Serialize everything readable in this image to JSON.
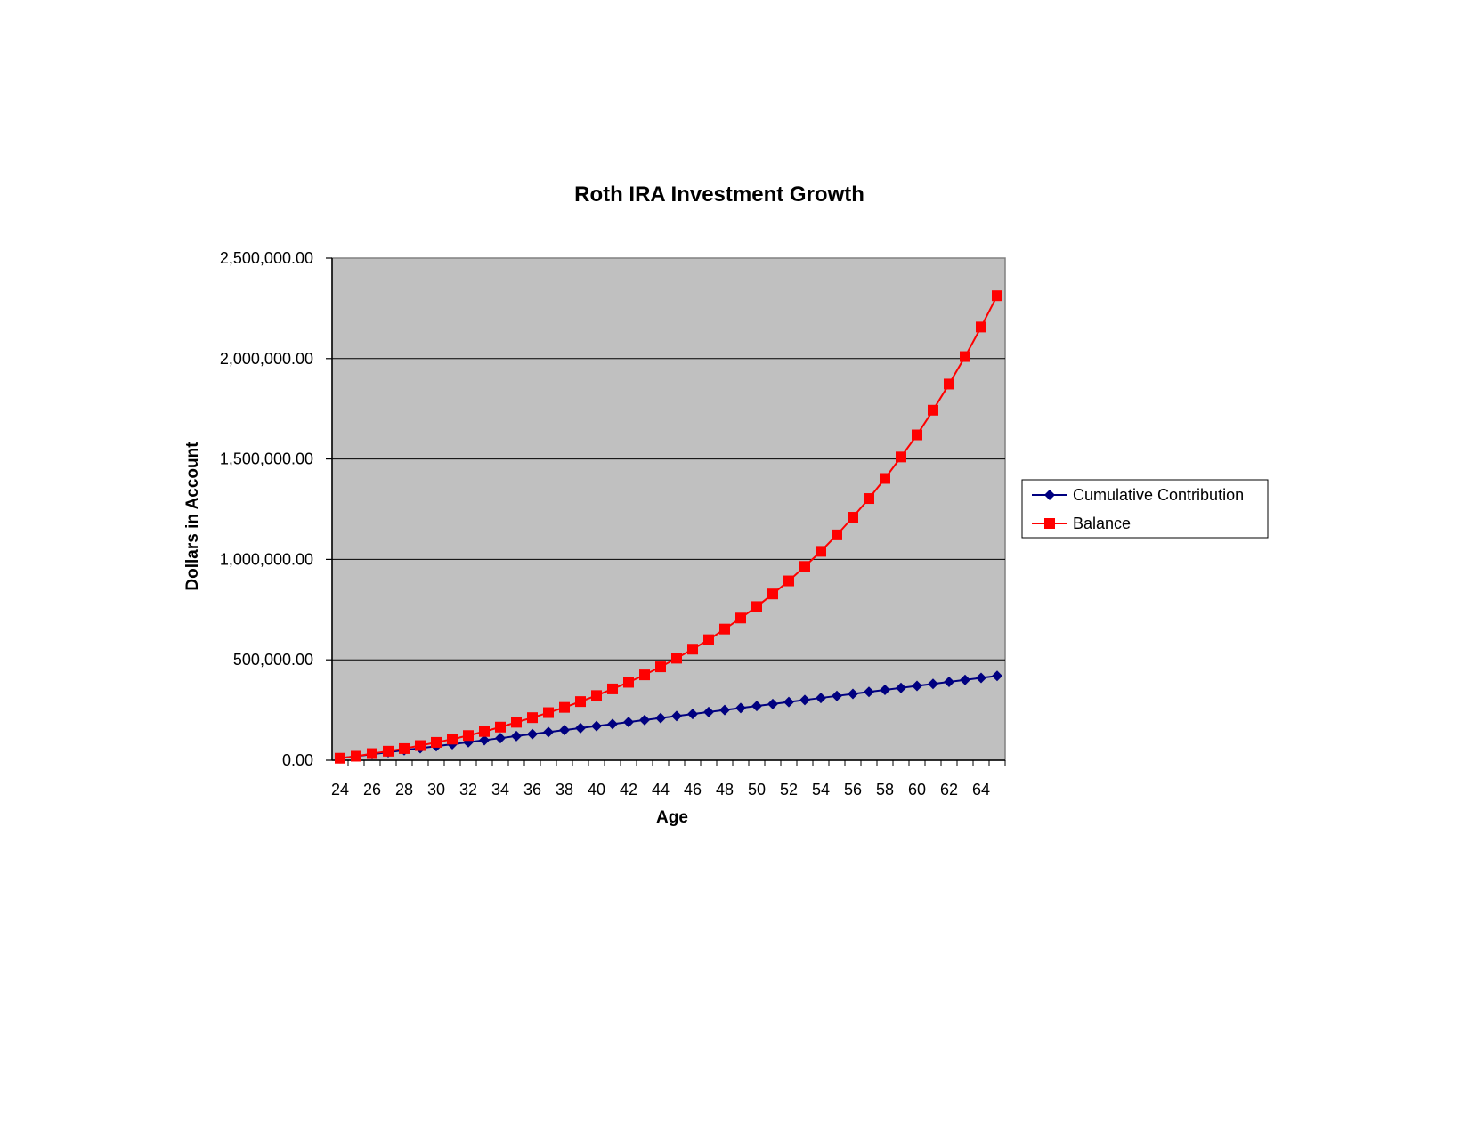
{
  "chart_data": {
    "type": "line",
    "title": "Roth IRA Investment Growth",
    "xlabel": "Age",
    "ylabel": "Dollars in Account",
    "xlim": [
      24,
      65
    ],
    "ylim": [
      0,
      2500000
    ],
    "x_tick_labels": [
      "24",
      "26",
      "28",
      "30",
      "32",
      "34",
      "36",
      "38",
      "40",
      "42",
      "44",
      "46",
      "48",
      "50",
      "52",
      "54",
      "56",
      "58",
      "60",
      "62",
      "64"
    ],
    "y_tick_labels": [
      "0.00",
      "500,000.00",
      "1,000,000.00",
      "1,500,000.00",
      "2,000,000.00",
      "2,500,000.00"
    ],
    "x": [
      24,
      25,
      26,
      27,
      28,
      29,
      30,
      31,
      32,
      33,
      34,
      35,
      36,
      37,
      38,
      39,
      40,
      41,
      42,
      43,
      44,
      45,
      46,
      47,
      48,
      49,
      50,
      51,
      52,
      53,
      54,
      55,
      56,
      57,
      58,
      59,
      60,
      61,
      62,
      63,
      64,
      65
    ],
    "series": [
      {
        "name": "Cumulative Contribution",
        "color": "#000080",
        "marker": "diamond",
        "values": [
          10000,
          20000,
          30000,
          40000,
          50000,
          60000,
          70000,
          80000,
          90000,
          100000,
          110000,
          120000,
          130000,
          140000,
          150000,
          160000,
          170000,
          180000,
          190000,
          200000,
          210000,
          220000,
          230000,
          240000,
          250000,
          260000,
          270000,
          280000,
          290000,
          300000,
          310000,
          320000,
          330000,
          340000,
          350000,
          360000,
          370000,
          380000,
          390000,
          400000,
          410000,
          420000
        ]
      },
      {
        "name": "Balance",
        "color": "#ff0000",
        "marker": "square",
        "values": [
          10000,
          20000,
          33000,
          45000,
          58000,
          73000,
          89000,
          105000,
          123000,
          143000,
          165000,
          189000,
          212000,
          237000,
          263000,
          292000,
          322000,
          355000,
          388000,
          425000,
          465000,
          508000,
          553000,
          600000,
          653000,
          708000,
          765000,
          828000,
          893000,
          965000,
          1040000,
          1122000,
          1210000,
          1303000,
          1403000,
          1510000,
          1620000,
          1743000,
          1873000,
          2010000,
          2157000,
          2313000
        ]
      }
    ],
    "grid": "horizontal",
    "plot_background": "#c0c0c0",
    "legend": {
      "position": "right"
    }
  }
}
